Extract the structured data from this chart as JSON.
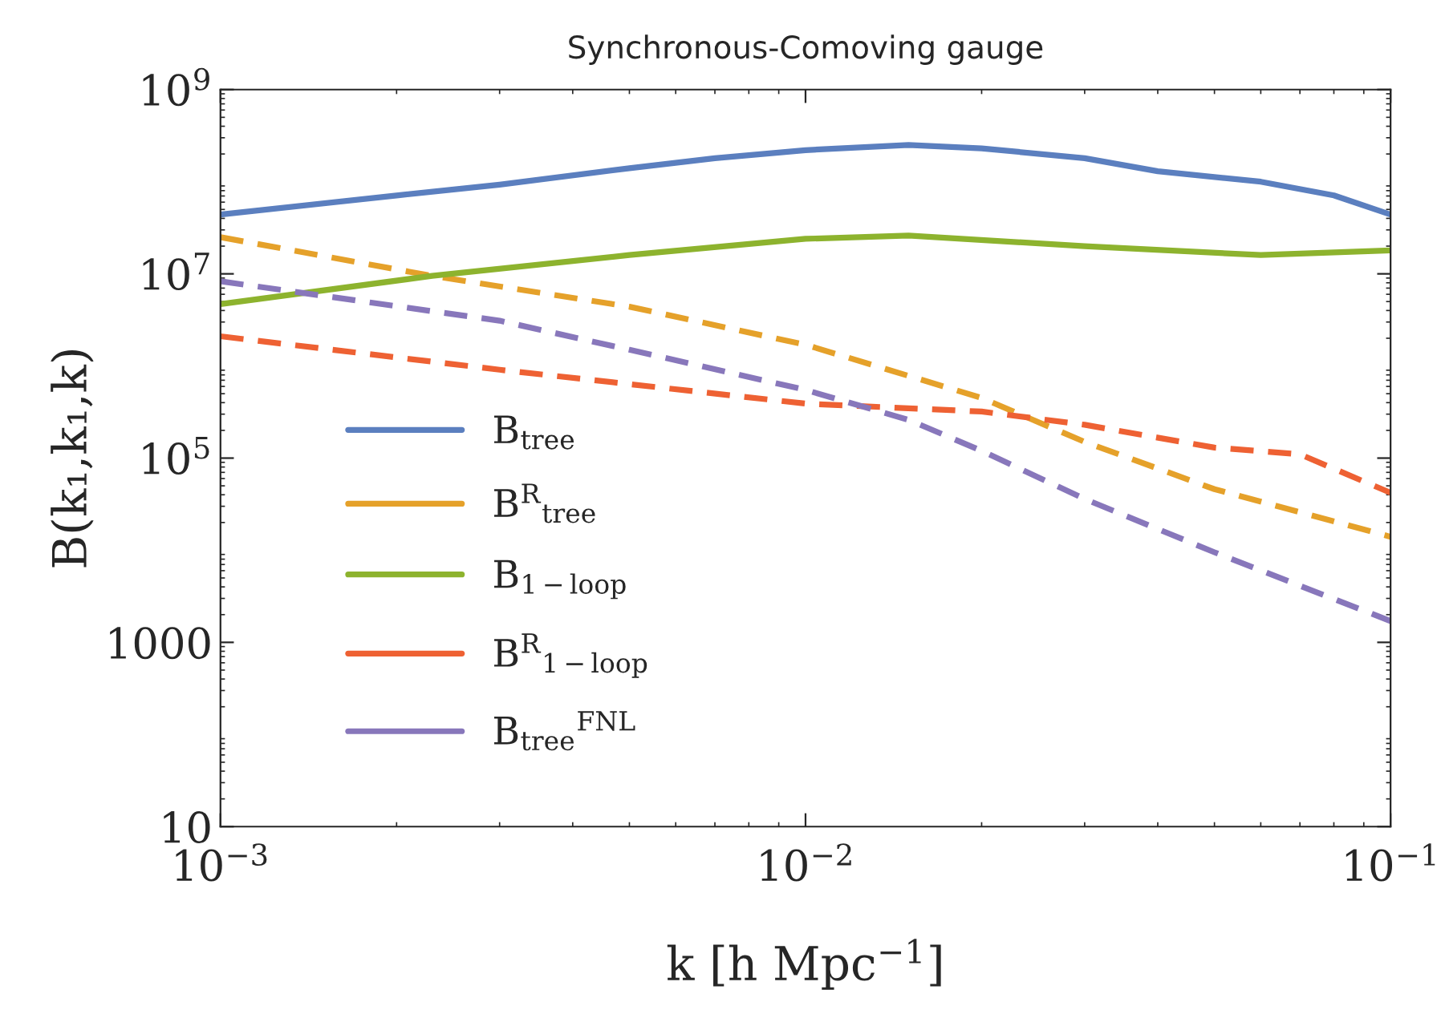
{
  "chart_data": {
    "type": "line",
    "title": "Synchronous-Comoving gauge",
    "xlabel": "k [h Mpc$^{−1}$]",
    "ylabel": "B(k₁,k₁,k)",
    "log": "xy",
    "grid": false,
    "legend": "left",
    "marker": "none",
    "xlim": [
      0.001,
      0.1
    ],
    "xticks": [
      {
        "value": 0.001,
        "label": "10$^{−3}$"
      },
      {
        "value": 0.01,
        "label": "10$^{−2}$"
      },
      {
        "value": 0.1,
        "label": "10$^{−1}$"
      }
    ],
    "ylim": [
      10,
      1000000000
    ],
    "yticks": [
      10,
      1000,
      {
        "value": 100000,
        "label": "10$^{5}$"
      },
      {
        "value": 10000000,
        "label": "10$^{7}$"
      },
      {
        "value": 1000000000,
        "label": "10$^{9}$"
      }
    ],
    "series": [
      {
        "name": "B$_{tree}$",
        "color": "#5b7fbf",
        "line_style": "solid",
        "x": [
          0.001,
          0.002,
          0.003,
          0.005,
          0.007,
          0.01,
          0.015,
          0.02,
          0.03,
          0.04,
          0.06,
          0.08,
          0.1
        ],
        "values": [
          44000000,
          71000000,
          93000000,
          140000000,
          180000000,
          220000000,
          250000000,
          230000000,
          180000000,
          130000000,
          100000000,
          71000000,
          44000000
        ]
      },
      {
        "name": "B$^{R}$$_{tree}$",
        "color": "#e5a12a",
        "line_style": "dashed",
        "x": [
          0.001,
          0.0023,
          0.005,
          0.01,
          0.02,
          0.03,
          0.05,
          0.1
        ],
        "values": [
          25000000,
          9500000,
          4400000,
          1700000,
          450000,
          150000,
          46000,
          14000
        ]
      },
      {
        "name": "B$_{1−loop}$",
        "color": "#8db32e",
        "line_style": "solid",
        "x": [
          0.001,
          0.0023,
          0.005,
          0.01,
          0.015,
          0.03,
          0.06,
          0.1
        ],
        "values": [
          4700000,
          9500000,
          16000000,
          24000000,
          26000000,
          20000000,
          16000000,
          18000000
        ]
      },
      {
        "name": "B$^{R}$$_{1−loop}$",
        "color": "#ee6133",
        "line_style": "dashed",
        "x": [
          0.001,
          0.003,
          0.01,
          0.02,
          0.03,
          0.05,
          0.07,
          0.1
        ],
        "values": [
          2100000,
          910000,
          390000,
          320000,
          230000,
          130000,
          110000,
          42000
        ]
      },
      {
        "name": "B$_{tree}$$^{FNL}$",
        "color": "#8877bb",
        "line_style": "dashed",
        "x": [
          0.001,
          0.003,
          0.005,
          0.01,
          0.015,
          0.02,
          0.03,
          0.05,
          0.1
        ],
        "values": [
          8300000,
          3100000,
          1500000,
          550000,
          260000,
          120000,
          36000,
          9500,
          1700
        ]
      }
    ]
  }
}
